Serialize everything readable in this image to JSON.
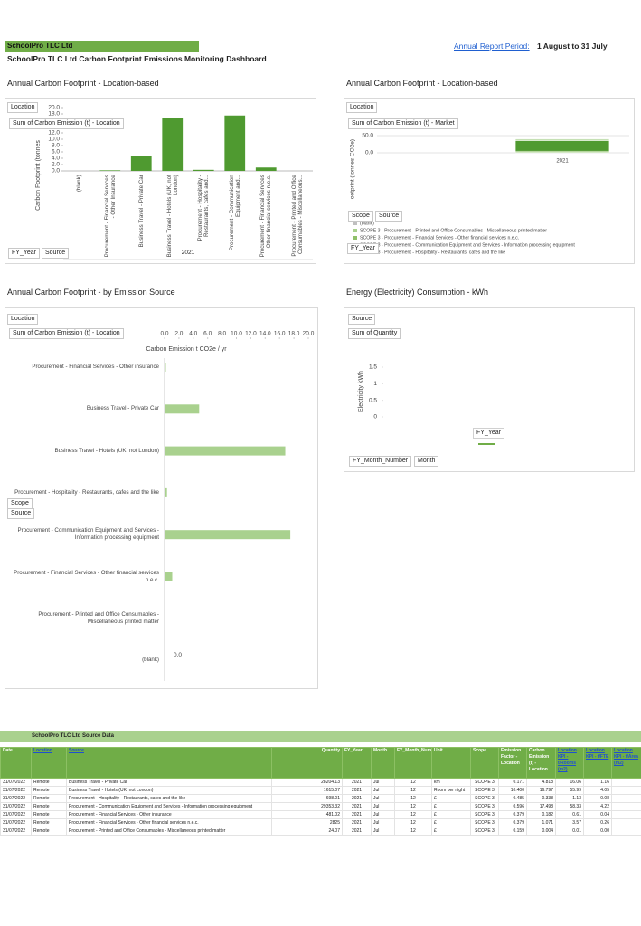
{
  "header": {
    "company": "SchoolPro TLC Ltd",
    "title": "SchoolPro TLC Ltd Carbon Footprint Emissions Monitoring Dashboard",
    "period_link": "Annual Report Period:",
    "period": "1 August to 31 July"
  },
  "chart_data": [
    {
      "type": "bar",
      "title": "Annual Carbon Footprint - Location-based",
      "field_buttons": [
        "Location",
        "Sum of Carbon Emission (t) - Location",
        "FY_Year",
        "Source"
      ],
      "y_label": "Carbon Footprint (tonnes",
      "group_label": "2021",
      "categories": [
        "(blank)",
        "Procurement - Financial Services - Other Insurance",
        "Business Travel - Private Car",
        "Business Travel - Hotels (UK, not London)",
        "Procurement - Hospitality - Restaurants, cafes and...",
        "Procurement - Communication Equipment and...",
        "Procurement - Financial Services - Other financial services n.e.c.",
        "Procurement - Printed and Office Consumables - Miscellaneous..."
      ],
      "values": [
        null,
        0.182,
        4.818,
        16.797,
        0.338,
        17.498,
        1.071,
        0.004
      ],
      "color": "#4f9a30",
      "ylim": [
        0,
        20
      ],
      "yticks": [
        {
          "value": 0,
          "label": "0.0"
        },
        {
          "value": 2,
          "label": "2.0"
        },
        {
          "value": 4,
          "label": "4.0"
        },
        {
          "value": 6,
          "label": "6.0"
        },
        {
          "value": 8,
          "label": "8.0"
        },
        {
          "value": 10,
          "label": "10.0"
        },
        {
          "value": 12,
          "label": "12.0"
        },
        {
          "value": 18,
          "label": "18.0"
        },
        {
          "value": 20,
          "label": "20.0"
        }
      ]
    },
    {
      "type": "stacked_bar",
      "title": "Annual Carbon Footprint - Location-based",
      "field_buttons": [
        "Location",
        "Sum of Carbon Emission (t) - Market",
        "Scope",
        "Source",
        "FY_Year"
      ],
      "y_label": "ootprint (tonnes CO2e)",
      "categories": [
        "2021"
      ],
      "series": [
        {
          "name": "(blank)",
          "color": "#bfbfbf",
          "values": [
            null
          ]
        },
        {
          "name": "SCOPE 3 - Procurement - Printed and Office Consumables - Miscellaneous printed matter",
          "color": "#a9d18e",
          "values": [
            2
          ]
        },
        {
          "name": "SCOPE 3 - Procurement - Financial Services - Other financial services n.e.c.",
          "color": "#8fc06a",
          "values": [
            3
          ]
        },
        {
          "name": "SCOPE 3 - Procurement - Communication Equipment and Services - Information processing equipment",
          "color": "#4f9a30",
          "values": [
            30
          ]
        },
        {
          "name": "SCOPE 3 - Procurement - Hospitality - Restaurants, cafes and the like",
          "color": "#c5e0b4",
          "values": [
            5
          ]
        }
      ],
      "ylim": [
        0,
        50
      ],
      "yticks": [
        {
          "value": 0,
          "label": "0.0"
        },
        {
          "value": 50,
          "label": "50.0"
        }
      ]
    },
    {
      "type": "hbar",
      "title": "Annual Carbon Footprint - by Emission Source",
      "field_buttons": [
        "Location",
        "Sum of Carbon Emission (t) - Location",
        "Scope",
        "Source"
      ],
      "x_label": "Carbon Emission t CO2e / yr",
      "categories": [
        "Procurement - Financial Services - Other insurance",
        "Business Travel - Private Car",
        "Business Travel - Hotels (UK, not London)",
        "Procurement - Hospitality - Restaurants, cafes and the like",
        "Procurement - Communication Equipment and Services - Information processing equipment",
        "Procurement - Financial Services - Other financial services n.e.c.",
        "Procurement - Printed and Office Consumables - Miscellaneous printed matter",
        "(blank)"
      ],
      "values": [
        0.182,
        4.818,
        16.797,
        0.338,
        17.498,
        1.071,
        0.004,
        0
      ],
      "value_labels": [
        null,
        null,
        null,
        null,
        null,
        null,
        null,
        "0.0"
      ],
      "color": "#a9d18e",
      "xlim": [
        0,
        20
      ],
      "xticks": [
        {
          "value": 0,
          "label": "0.0"
        },
        {
          "value": 2,
          "label": "2.0"
        },
        {
          "value": 4,
          "label": "4.0"
        },
        {
          "value": 6,
          "label": "6.0"
        },
        {
          "value": 8,
          "label": "8.0"
        },
        {
          "value": 10,
          "label": "10.0"
        },
        {
          "value": 12,
          "label": "12.0"
        },
        {
          "value": 14,
          "label": "14.0"
        },
        {
          "value": 16,
          "label": "16.0"
        },
        {
          "value": 18,
          "label": "18.0"
        },
        {
          "value": 20,
          "label": "20.0"
        }
      ]
    },
    {
      "type": "line",
      "title": "Energy (Electricity) Consumption - kWh",
      "field_buttons": [
        "Source",
        "Sum of Quantity",
        "FY_Month_Number",
        "Month"
      ],
      "legend_title": "FY_Year",
      "y_label": "Electricity kWh",
      "categories": [],
      "series": [
        {
          "color": "#70ad47",
          "values": []
        }
      ],
      "ylim": [
        0,
        1.5
      ],
      "yticks": [
        0,
        0.5,
        1,
        1.5
      ]
    }
  ],
  "table": {
    "title": "SchoolPro TLC Ltd Source Data",
    "columns": [
      "Date",
      "Location",
      "Source",
      "Quantity",
      "FY_Year",
      "Month",
      "FY_Month_Number",
      "Unit",
      "Scope",
      "Emission Factor - Location",
      "Carbon Emission (t) - Location",
      "Location KPI - t/Rooms (m2)",
      "Location KPI - t/FTE",
      "Location KPI - t/Area (m2)"
    ],
    "rows": [
      [
        "31/07/2022",
        "Remote",
        "Business Travel - Private Car",
        "28204.13",
        "2021",
        "Jul",
        "12",
        "km",
        "SCOPE 3",
        "0.171",
        "4.818",
        "16.06",
        "1.16"
      ],
      [
        "31/07/2022",
        "Remote",
        "Business Travel - Hotels (UK, not London)",
        "1615.07",
        "2021",
        "Jul",
        "12",
        "Room per night",
        "SCOPE 3",
        "10.400",
        "16.797",
        "55.99",
        "4.05"
      ],
      [
        "31/07/2022",
        "Remote",
        "Procurement - Hospitality - Restaurants, cafes and the like",
        "698.01",
        "2021",
        "Jul",
        "12",
        "£",
        "SCOPE 3",
        "0.485",
        "0.338",
        "1.13",
        "0.08"
      ],
      [
        "31/07/2022",
        "Remote",
        "Procurement - Communication Equipment and Services - Information processing equipment",
        "29353.32",
        "2021",
        "Jul",
        "12",
        "£",
        "SCOPE 3",
        "0.596",
        "17.498",
        "58.33",
        "4.22"
      ],
      [
        "31/07/2022",
        "Remote",
        "Procurement - Financial Services - Other insurance",
        "481.02",
        "2021",
        "Jul",
        "12",
        "£",
        "SCOPE 3",
        "0.379",
        "0.182",
        "0.61",
        "0.04"
      ],
      [
        "31/07/2022",
        "Remote",
        "Procurement - Financial Services - Other financial services n.e.c.",
        "2825",
        "2021",
        "Jul",
        "12",
        "£",
        "SCOPE 3",
        "0.379",
        "1.071",
        "3.57",
        "0.26"
      ],
      [
        "31/07/2022",
        "Remote",
        "Procurement - Printed and Office Consumables - Miscellaneous printed matter",
        "24.07",
        "2021",
        "Jul",
        "12",
        "£",
        "SCOPE 3",
        "0.159",
        "0.004",
        "0.01",
        "0.00"
      ]
    ]
  }
}
